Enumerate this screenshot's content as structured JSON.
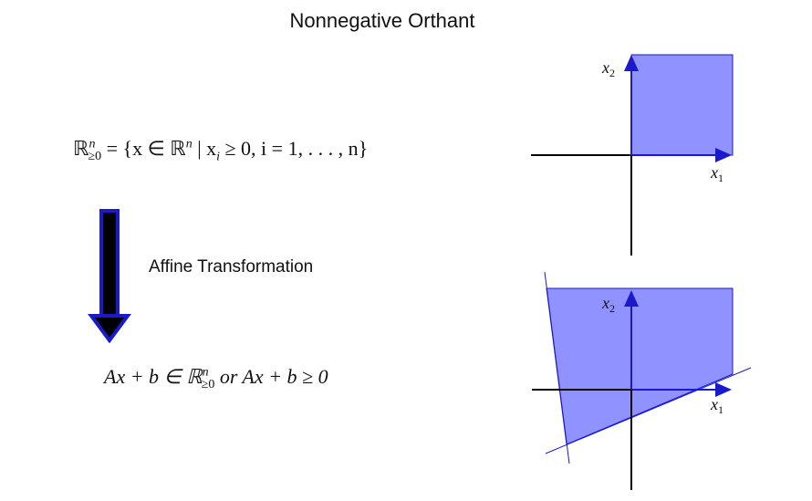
{
  "title": "Nonnegative Orthant",
  "definition": {
    "lhs": "ℝ",
    "lhs_sup": "n",
    "lhs_sub": "≥0",
    "rhs": "= {x ∈ ℝ",
    "rhs_sup": "n",
    "rhs_rest": " | x",
    "rhs_sub_i": "i",
    "rhs_tail": " ≥ 0,  i = 1, . . . , n}"
  },
  "arrow_label": "Affine Transformation",
  "result": {
    "part1": "Ax + b ∈ ℝ",
    "sup": "n",
    "sub": "≥0",
    "part2": " or Ax + b ≥ 0"
  },
  "axes": {
    "x1": "x",
    "x1_sub": "1",
    "x2": "x",
    "x2_sub": "2"
  },
  "colors": {
    "fill": "#9093ff",
    "edge": "#1a1acc",
    "axis": "#000000",
    "arrow_head": "#1a1acc"
  }
}
